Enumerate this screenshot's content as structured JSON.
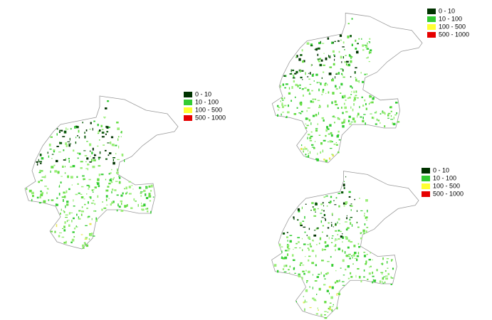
{
  "maps": [
    {
      "legend": [
        {
          "label": "0 - 10",
          "color": "#003300"
        },
        {
          "label": "10 - 100",
          "color": "#33cc33"
        },
        {
          "label": "100 - 500",
          "color": "#ffff33"
        },
        {
          "label": "500 - 1000",
          "color": "#e60000"
        }
      ]
    },
    {
      "legend": [
        {
          "label": "0 - 10",
          "color": "#003300"
        },
        {
          "label": "10 - 100",
          "color": "#33cc33"
        },
        {
          "label": "100 - 500",
          "color": "#ffff33"
        },
        {
          "label": "500 - 1000",
          "color": "#e60000"
        }
      ]
    },
    {
      "legend": [
        {
          "label": "0 - 10",
          "color": "#003300"
        },
        {
          "label": "10 - 100",
          "color": "#33cc33"
        },
        {
          "label": "100 - 500",
          "color": "#ffff33"
        },
        {
          "label": "500 - 1000",
          "color": "#e60000"
        }
      ]
    }
  ]
}
